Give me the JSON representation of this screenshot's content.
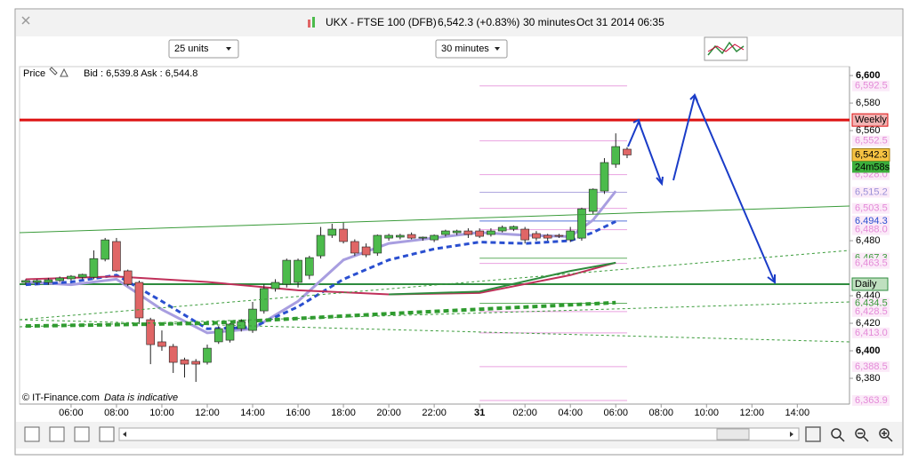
{
  "header": {
    "symbol": "UKX - FTSE 100 (DFB)",
    "quote": "6,542.3 (+0.83%)",
    "interval": "30 minutes",
    "datetime": "Oct 31 2014 06:35"
  },
  "toolbar": {
    "units": "25 units",
    "timeframe": "30 minutes"
  },
  "legend": {
    "price": "Price",
    "bidask": "Bid : 6,539.8 Ask : 6,544.8"
  },
  "footer": {
    "copyright": "© IT-Finance.com",
    "note": "Data is indicative"
  },
  "chart_data": {
    "type": "candlestick",
    "xlim": [
      3.73,
      40.3
    ],
    "ylim": [
      6361.3,
      6606.5
    ],
    "xticks": [
      {
        "value": 6,
        "label": "06:00"
      },
      {
        "value": 8,
        "label": "08:00"
      },
      {
        "value": 10,
        "label": "10:00"
      },
      {
        "value": 12,
        "label": "12:00"
      },
      {
        "value": 14,
        "label": "14:00"
      },
      {
        "value": 16,
        "label": "16:00"
      },
      {
        "value": 18,
        "label": "18:00"
      },
      {
        "value": 20,
        "label": "20:00"
      },
      {
        "value": 22,
        "label": "22:00"
      },
      {
        "value": 24,
        "label": "31"
      },
      {
        "value": 26,
        "label": "02:00"
      },
      {
        "value": 28,
        "label": "04:00"
      },
      {
        "value": 30,
        "label": "06:00"
      },
      {
        "value": 32,
        "label": "08:00"
      },
      {
        "value": 34,
        "label": "10:00"
      },
      {
        "value": 36,
        "label": "12:00"
      },
      {
        "value": 38,
        "label": "14:00"
      }
    ],
    "yticks": [
      {
        "value": 6600,
        "label": "6,600"
      },
      {
        "value": 6580,
        "label": "6,580"
      },
      {
        "value": 6560,
        "label": "6,560"
      },
      {
        "value": 6480,
        "label": "6,480"
      },
      {
        "value": 6440,
        "label": "6,440"
      },
      {
        "value": 6420,
        "label": "6,420"
      },
      {
        "value": 6400,
        "label": "6,400"
      },
      {
        "value": 6380,
        "label": "6,380"
      }
    ],
    "up_color": "#4cbb4c",
    "down_color": "#e06666",
    "x": [
      4,
      4.5,
      5,
      5.5,
      6,
      6.5,
      7,
      7.5,
      8,
      8.5,
      9,
      9.5,
      10,
      10.5,
      11,
      11.5,
      12,
      12.5,
      13,
      13.5,
      14,
      14.5,
      15,
      15.5,
      16,
      16.5,
      17,
      17.5,
      18,
      18.5,
      19,
      19.5,
      20,
      20.5,
      21,
      21.5,
      22,
      22.5,
      23,
      23.5,
      24,
      24.5,
      25,
      25.5,
      26,
      26.5,
      27,
      27.5,
      28,
      28.5,
      29,
      29.5,
      30,
      30.5
    ],
    "open": [
      6449.7,
      6449.7,
      6449.7,
      6451,
      6452.3,
      6453.5,
      6453.5,
      6466.5,
      6479.4,
      6458.1,
      6449.7,
      6422.6,
      6406.5,
      6403.2,
      6393.5,
      6392.3,
      6391.6,
      6406.5,
      6407.7,
      6416.1,
      6414.8,
      6429,
      6445.2,
      6448.4,
      6449.7,
      6454.8,
      6469,
      6483.9,
      6488.4,
      6479.4,
      6475.5,
      6471,
      6481.9,
      6482.6,
      6484.5,
      6481.9,
      6480.6,
      6484.5,
      6485.8,
      6487.1,
      6487.1,
      6484.5,
      6487.1,
      6488.4,
      6488.4,
      6485.2,
      6483.9,
      6483.9,
      6480.6,
      6481.9,
      6501.3,
      6516.1,
      6535.5,
      6546.5
    ],
    "high": [
      6452,
      6452,
      6453,
      6454,
      6455,
      6456,
      6473,
      6482,
      6482,
      6459,
      6451,
      6424,
      6414.8,
      6405,
      6395,
      6394,
      6404.5,
      6418,
      6420,
      6423,
      6435.5,
      6448.4,
      6452,
      6467,
      6467,
      6469,
      6490,
      6492.3,
      6493.5,
      6481,
      6478,
      6484.5,
      6485,
      6485,
      6486,
      6483,
      6484.5,
      6488,
      6488,
      6489,
      6489,
      6489,
      6491,
      6491,
      6490,
      6487,
      6485,
      6485,
      6490,
      6504,
      6518,
      6540,
      6558,
      6548
    ],
    "low": [
      6448,
      6448,
      6448,
      6450,
      6451,
      6452,
      6452,
      6465,
      6457.4,
      6447,
      6419.4,
      6390.3,
      6400,
      6383.9,
      6380.6,
      6377.4,
      6390,
      6405,
      6406,
      6414,
      6413,
      6427,
      6443,
      6446,
      6446,
      6452,
      6467,
      6482,
      6478,
      6469,
      6468,
      6469,
      6480,
      6481,
      6481,
      6480,
      6479,
      6483,
      6484,
      6482,
      6482,
      6483,
      6486,
      6487,
      6478,
      6480,
      6480,
      6482,
      6479,
      6480,
      6499,
      6514,
      6533,
      6540
    ],
    "close": [
      6451,
      6451,
      6451.6,
      6452.9,
      6454.2,
      6455.5,
      6467,
      6480.6,
      6458.1,
      6448.4,
      6423.9,
      6404.5,
      6403.2,
      6391.6,
      6390.3,
      6390.3,
      6401.9,
      6416.1,
      6419.4,
      6421.3,
      6430.3,
      6445.2,
      6449.7,
      6465.8,
      6465.8,
      6467.7,
      6483.9,
      6488.4,
      6479.4,
      6471,
      6469.7,
      6483.9,
      6483.9,
      6483.9,
      6481.9,
      6482.6,
      6483.9,
      6487.1,
      6487.1,
      6484.5,
      6483.2,
      6487.1,
      6489.7,
      6490.3,
      6480.6,
      6481.9,
      6481.9,
      6483.2,
      6487.1,
      6503.2,
      6517.4,
      6536.8,
      6548.4,
      6542.3
    ],
    "series": [
      {
        "color": "#a89ee0",
        "dash": false,
        "width": 3,
        "x": [
          4,
          6,
          8,
          10,
          12,
          14,
          16,
          18,
          20,
          22,
          24,
          26,
          28,
          29,
          30
        ],
        "values": [
          6450,
          6448,
          6452,
          6430,
          6413,
          6416,
          6436,
          6466,
          6478,
          6482,
          6486,
          6484,
          6483,
          6495,
          6516
        ]
      },
      {
        "color": "#2a4fd0",
        "dash": true,
        "width": 3,
        "x": [
          4,
          6,
          8,
          10,
          12,
          14,
          16,
          18,
          20,
          22,
          24,
          26,
          28,
          29,
          30
        ],
        "values": [
          6448,
          6450,
          6455,
          6436,
          6416,
          6417,
          6432,
          6452,
          6466,
          6474,
          6479,
          6478,
          6480,
          6486,
          6494
        ]
      },
      {
        "color": "#c0305a",
        "dash": false,
        "width": 2,
        "x": [
          4,
          8,
          12,
          16,
          20,
          24,
          28,
          30
        ],
        "values": [
          6452,
          6454,
          6450,
          6444,
          6441,
          6442,
          6455,
          6464
        ]
      },
      {
        "color": "#2e8b3e",
        "dash": false,
        "width": 2,
        "x": [
          20,
          24,
          28,
          30
        ],
        "values": [
          6441,
          6443,
          6458,
          6464
        ]
      },
      {
        "color": "#2e9b2e",
        "dash": true,
        "width": 4,
        "x": [
          4,
          12,
          20,
          30
        ],
        "values": [
          6418,
          6420,
          6427,
          6435
        ]
      }
    ],
    "weekly": {
      "value": 6567.7,
      "label": "Weekly",
      "color": "#dd1111"
    },
    "daily": {
      "value": 6448.4,
      "label": "Daily",
      "color": "#2e8b3e"
    },
    "last": {
      "value": 6542.3,
      "label": "6,542.3",
      "countdown": "24m58s"
    },
    "levels": [
      {
        "value": 6592.5,
        "label": "6,592.5",
        "color": "#e48ad8"
      },
      {
        "value": 6552.5,
        "label": "6,552.5",
        "color": "#e48ad8"
      },
      {
        "value": 6528.0,
        "label": "6,528.0",
        "color": "#e48ad8"
      },
      {
        "value": 6515.2,
        "label": "6,515.2",
        "color": "#9a90d8"
      },
      {
        "value": 6503.5,
        "label": "6,503.5",
        "color": "#e48ad8"
      },
      {
        "value": 6494.3,
        "label": "6,494.3",
        "color": "#2a4fd0"
      },
      {
        "value": 6488.0,
        "label": "6,488.0",
        "color": "#e48ad8"
      },
      {
        "value": 6467.3,
        "label": "6,467.3",
        "color": "#3a9b3a"
      },
      {
        "value": 6463.5,
        "label": "6,463.5",
        "color": "#e48ad8"
      },
      {
        "value": 6434.5,
        "label": "6,434.5",
        "color": "#3a9b3a"
      },
      {
        "value": 6428.5,
        "label": "6,428.5",
        "color": "#e48ad8"
      },
      {
        "value": 6413.0,
        "label": "6,413.0",
        "color": "#e48ad8"
      },
      {
        "value": 6388.5,
        "label": "6,388.5",
        "color": "#e48ad8"
      },
      {
        "value": 6363.9,
        "label": "6,363.9",
        "color": "#e48ad8"
      }
    ]
  }
}
